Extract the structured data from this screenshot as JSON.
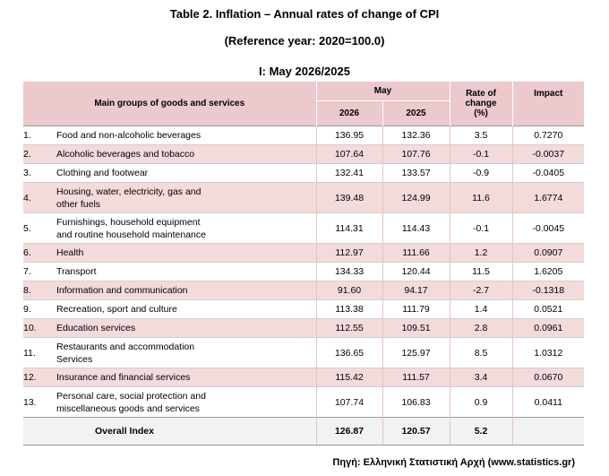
{
  "titles": {
    "main": "Table 2. Inflation – Annual rates of change of CPI",
    "reference": "(Reference year: 2020=100.0)",
    "period": "I: May 2026/2025"
  },
  "header": {
    "groups": "Main groups of goods and services",
    "may": "May",
    "year_1": "2026",
    "year_2": "2025",
    "rate_line1": "Rate of",
    "rate_line2": "change",
    "rate_line3": "(%)",
    "impact": "Impact"
  },
  "rows": [
    {
      "idx": "1.",
      "name1": "Food and non-alcoholic beverages",
      "name2": "",
      "y2026": "136.95",
      "y2025": "132.36",
      "rate": "3.5",
      "impact": "0.7270"
    },
    {
      "idx": "2.",
      "name1": "Alcoholic beverages and tobacco",
      "name2": "",
      "y2026": "107.64",
      "y2025": "107.76",
      "rate": "-0.1",
      "impact": "-0.0037"
    },
    {
      "idx": "3.",
      "name1": "Clothing and footwear",
      "name2": "",
      "y2026": "132.41",
      "y2025": "133.57",
      "rate": "-0.9",
      "impact": "-0.0405"
    },
    {
      "idx": "4.",
      "name1": "Housing, water, electricity, gas and",
      "name2": "other fuels",
      "y2026": "139.48",
      "y2025": "124.99",
      "rate": "11.6",
      "impact": "1.6774"
    },
    {
      "idx": "5.",
      "name1": "Furnishings, household equipment",
      "name2": "and routine household maintenance",
      "y2026": "114.31",
      "y2025": "114.43",
      "rate": "-0.1",
      "impact": "-0.0045"
    },
    {
      "idx": "6.",
      "name1": "Health",
      "name2": "",
      "y2026": "112.97",
      "y2025": "111.66",
      "rate": "1.2",
      "impact": "0.0907"
    },
    {
      "idx": "7.",
      "name1": "Transport",
      "name2": "",
      "y2026": "134.33",
      "y2025": "120.44",
      "rate": "11.5",
      "impact": "1.6205"
    },
    {
      "idx": "8.",
      "name1": "Information and communication",
      "name2": "",
      "y2026": "91.60",
      "y2025": "94.17",
      "rate": "-2.7",
      "impact": "-0.1318"
    },
    {
      "idx": "9.",
      "name1": "Recreation, sport and culture",
      "name2": "",
      "y2026": "113.38",
      "y2025": "111.79",
      "rate": "1.4",
      "impact": "0.0521"
    },
    {
      "idx": "10.",
      "name1": "Education services",
      "name2": "",
      "y2026": "112.55",
      "y2025": "109.51",
      "rate": "2.8",
      "impact": "0.0961"
    },
    {
      "idx": "11.",
      "name1": "Restaurants and accommodation",
      "name2": "Services",
      "y2026": "136.65",
      "y2025": "125.97",
      "rate": "8.5",
      "impact": "1.0312"
    },
    {
      "idx": "12.",
      "name1": "Insurance and financial services",
      "name2": "",
      "y2026": "115.42",
      "y2025": "111.57",
      "rate": "3.4",
      "impact": "0.0670"
    },
    {
      "idx": "13.",
      "name1": "Personal care, social protection and",
      "name2": "miscellaneous goods and services",
      "y2026": "107.74",
      "y2025": "106.83",
      "rate": "0.9",
      "impact": "0.0411"
    }
  ],
  "overall": {
    "label": "Overall Index",
    "y2026": "126.87",
    "y2025": "120.57",
    "rate": "5.2",
    "impact": ""
  },
  "source": "Πηγή: Ελληνική Στατιστική Αρχή (www.statistics.gr)",
  "colors": {
    "header_bg": "#ebc9cc",
    "row_pink": "#f3dadb",
    "footer_bg": "#f2f2f2"
  }
}
